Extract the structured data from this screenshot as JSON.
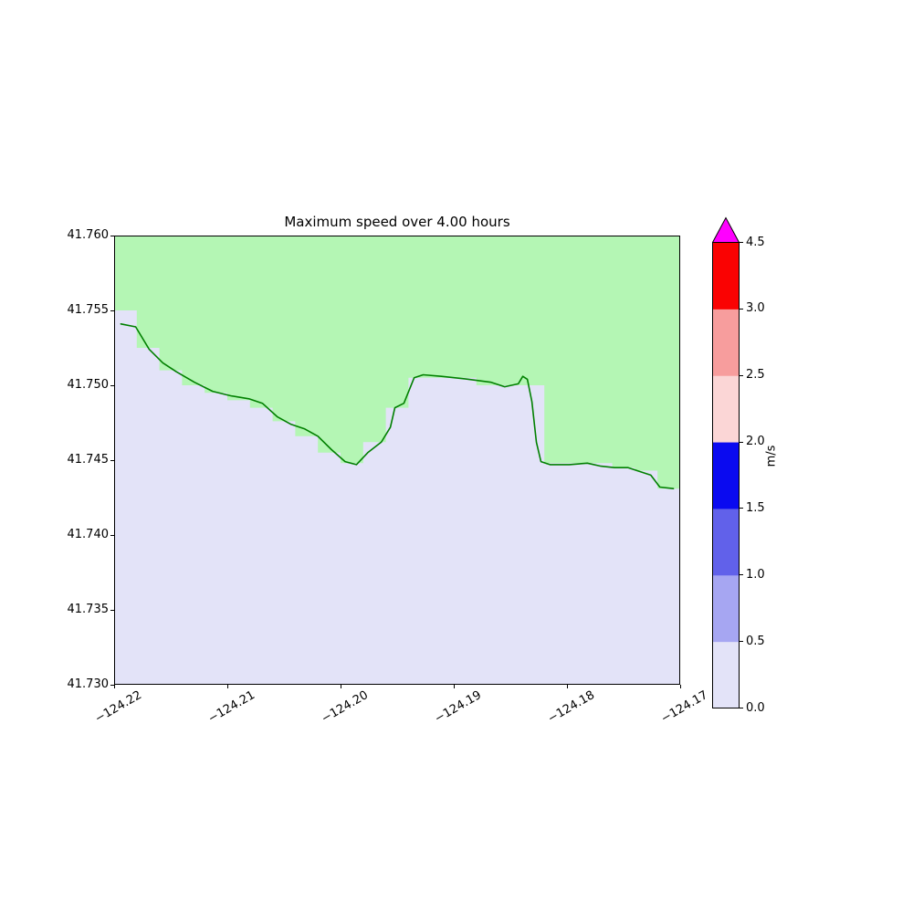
{
  "figure": {
    "title": "Maximum speed over 4.00 hours"
  },
  "chart_data": {
    "type": "heatmap",
    "title": "Maximum speed over 4.00 hours",
    "xlabel": "",
    "ylabel": "",
    "grid": false,
    "xlim": [
      -124.22,
      -124.17
    ],
    "ylim": [
      41.73,
      41.76
    ],
    "x_ticks": [
      -124.22,
      -124.21,
      -124.2,
      -124.19,
      -124.18,
      -124.17
    ],
    "x_tick_labels": [
      "−124.22",
      "−124.21",
      "−124.20",
      "−124.19",
      "−124.18",
      "−124.17"
    ],
    "y_ticks": [
      41.73,
      41.735,
      41.74,
      41.745,
      41.75,
      41.755,
      41.76
    ],
    "y_tick_labels": [
      "41.730",
      "41.735",
      "41.740",
      "41.745",
      "41.750",
      "41.755",
      "41.760"
    ],
    "land_color": "#b4f6b4",
    "sea_color": "#e3e3f8",
    "sea_speed_value_range": [
      0.0,
      0.5
    ],
    "coastline_color": "#008000",
    "land_sea_boundary": {
      "lon_start": -124.22,
      "cell_width_deg": 0.002,
      "boundary_lats": [
        41.755,
        41.7525,
        41.751,
        41.75,
        41.7495,
        41.749,
        41.7485,
        41.7476,
        41.7466,
        41.7455,
        41.7448,
        41.7462,
        41.7485,
        41.7505,
        41.7505,
        41.7505,
        41.75,
        41.75,
        41.75,
        41.7448,
        41.7448,
        41.7448,
        41.7445,
        41.7443,
        41.7431
      ]
    },
    "coastline": [
      [
        -124.2194,
        41.7541
      ],
      [
        -124.2181,
        41.7539
      ],
      [
        -124.2169,
        41.7524
      ],
      [
        -124.2157,
        41.7515
      ],
      [
        -124.2145,
        41.7509
      ],
      [
        -124.2129,
        41.7502
      ],
      [
        -124.2113,
        41.7496
      ],
      [
        -124.2097,
        41.7493
      ],
      [
        -124.2081,
        41.7491
      ],
      [
        -124.2069,
        41.7488
      ],
      [
        -124.2056,
        41.7479
      ],
      [
        -124.2044,
        41.7474
      ],
      [
        -124.2032,
        41.7471
      ],
      [
        -124.202,
        41.7466
      ],
      [
        -124.2008,
        41.7457
      ],
      [
        -124.1996,
        41.7449
      ],
      [
        -124.1986,
        41.7447
      ],
      [
        -124.1976,
        41.7455
      ],
      [
        -124.1964,
        41.7462
      ],
      [
        -124.1956,
        41.7472
      ],
      [
        -124.1952,
        41.7485
      ],
      [
        -124.1944,
        41.7488
      ],
      [
        -124.1935,
        41.7505
      ],
      [
        -124.1927,
        41.7507
      ],
      [
        -124.1911,
        41.7506
      ],
      [
        -124.1887,
        41.7504
      ],
      [
        -124.1867,
        41.7502
      ],
      [
        -124.1855,
        41.7499
      ],
      [
        -124.1843,
        41.7501
      ],
      [
        -124.1839,
        41.7506
      ],
      [
        -124.1835,
        41.7504
      ],
      [
        -124.1831,
        41.7489
      ],
      [
        -124.1827,
        41.7462
      ],
      [
        -124.1823,
        41.7449
      ],
      [
        -124.1815,
        41.7447
      ],
      [
        -124.1798,
        41.7447
      ],
      [
        -124.1782,
        41.7448
      ],
      [
        -124.177,
        41.7446
      ],
      [
        -124.1758,
        41.7445
      ],
      [
        -124.1746,
        41.7445
      ],
      [
        -124.1734,
        41.7442
      ],
      [
        -124.1726,
        41.744
      ],
      [
        -124.1718,
        41.7432
      ],
      [
        -124.1706,
        41.7431
      ]
    ],
    "colorbar": {
      "label": "m/s",
      "orientation": "vertical",
      "extend": "max",
      "boundaries": [
        0.0,
        0.5,
        1.0,
        1.5,
        2.0,
        2.5,
        3.0,
        4.5
      ],
      "tick_labels": [
        "0.0",
        "0.5",
        "1.0",
        "1.5",
        "2.0",
        "2.5",
        "3.0",
        "4.5"
      ],
      "segment_colors": [
        "#e3e3f8",
        "#a6a6f2",
        "#6161ea",
        "#0a0af0",
        "#fbd6d6",
        "#f79d9d",
        "#fa0202"
      ],
      "over_color": "#ff00ff"
    }
  }
}
